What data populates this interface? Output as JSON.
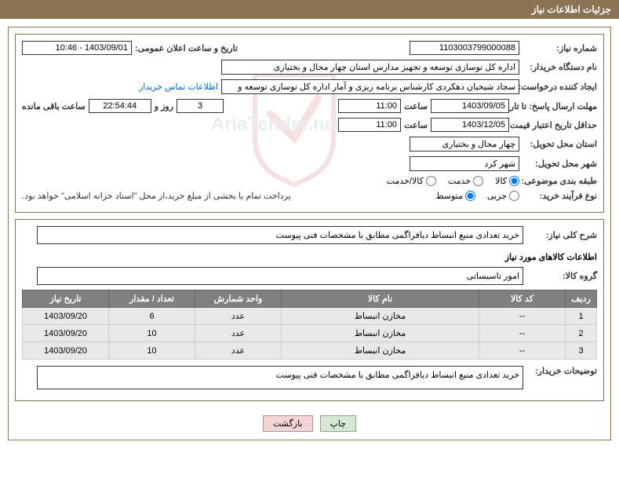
{
  "header": {
    "title": "جزئیات اطلاعات نیاز"
  },
  "labels": {
    "reqNum": "شماره نیاز:",
    "announceDate": "تاریخ و ساعت اعلان عمومی:",
    "buyerOrg": "نام دستگاه خریدار:",
    "requester": "ایجاد کننده درخواست:",
    "contactLink": "اطلاعات تماس خریدار",
    "responseDeadline": "مهلت ارسال پاسخ: تا تاریخ:",
    "time": "ساعت",
    "daysAnd": "روز و",
    "remaining": "ساعت باقی مانده",
    "priceValidity": "حداقل تاریخ اعتبار قیمت: تا تاریخ:",
    "deliveryProvince": "استان محل تحویل:",
    "deliveryCity": "شهر محل تحویل:",
    "category": "طبقه بندی موضوعی:",
    "purchaseType": "نوع فرآیند خرید:",
    "paymentNote": "پرداخت تمام یا بخشی از مبلغ خرید،از محل \"اسناد خزانه اسلامی\" خواهد بود.",
    "generalDesc": "شرح کلی نیاز:",
    "itemsInfo": "اطلاعات کالاهای مورد نیاز",
    "itemGroup": "گروه کالا:",
    "buyerNotes": "توضیحات خریدار:"
  },
  "values": {
    "reqNum": "1103003799000088",
    "announceDate": "1403/09/01 - 10:46",
    "buyerOrg": "اداره کل نوسازی  توسعه و تجهیز مدارس استان چهار محال و بختیاری",
    "requester": "سجاد شیخیان دهکردی کارشناس برنامه ریزی و آمار اداره کل نوسازی  توسعه و",
    "responseDate": "1403/09/05",
    "responseTime": "11:00",
    "daysRemaining": "3",
    "countdown": "22:54:44",
    "priceValidDate": "1403/12/05",
    "priceValidTime": "11:00",
    "province": "چهار محال و بختیاری",
    "city": "شهر کرد",
    "generalDesc": "خرید تعدادی منبع انبساط دیافراگمی مطابق با مشخصات فنی پیوست",
    "itemGroup": "امور تاسیساتی",
    "buyerNotes": "خرید تعدادی منبع انبساط دیافراگمی مطابق با مشخصات فنی پیوست"
  },
  "radios": {
    "category": {
      "options": [
        "کالا",
        "خدمت",
        "کالا/خدمت"
      ],
      "selected": 0
    },
    "purchaseType": {
      "options": [
        "جزیی",
        "متوسط"
      ],
      "selected": 1
    }
  },
  "table": {
    "headers": [
      "ردیف",
      "کد کالا",
      "نام کالا",
      "واحد شمارش",
      "تعداد / مقدار",
      "تاریخ نیاز"
    ],
    "rows": [
      [
        "1",
        "--",
        "مخازن انبساط",
        "عدد",
        "6",
        "1403/09/20"
      ],
      [
        "2",
        "--",
        "مخازن انبساط",
        "عدد",
        "10",
        "1403/09/20"
      ],
      [
        "3",
        "--",
        "مخازن انبساط",
        "عدد",
        "10",
        "1403/09/20"
      ]
    ],
    "colWidths": [
      "40px",
      "110px",
      "auto",
      "110px",
      "110px",
      "110px"
    ]
  },
  "buttons": {
    "print": "چاپ",
    "back": "بازگشت"
  },
  "colors": {
    "headerBg": "#8b7355",
    "tableHeaderBg": "#808080",
    "tableRowBg": "#e8e8e8",
    "linkColor": "#0066cc"
  }
}
